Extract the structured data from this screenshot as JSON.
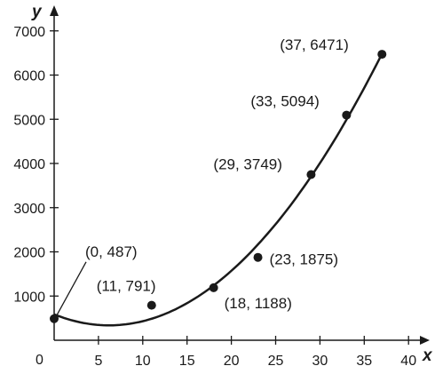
{
  "chart_data": {
    "type": "scatter",
    "title": "",
    "xlabel": "x",
    "ylabel": "y",
    "xlim": [
      0,
      40
    ],
    "ylim": [
      0,
      7000
    ],
    "x_ticks": [
      5,
      10,
      15,
      20,
      25,
      30,
      35,
      40
    ],
    "y_ticks": [
      1000,
      2000,
      3000,
      4000,
      5000,
      6000,
      7000
    ],
    "origin_label": "0",
    "grid": false,
    "points": [
      {
        "x": 0,
        "y": 487,
        "label": "(0, 487)"
      },
      {
        "x": 11,
        "y": 791,
        "label": "(11, 791)"
      },
      {
        "x": 18,
        "y": 1188,
        "label": "(18, 1188)"
      },
      {
        "x": 23,
        "y": 1875,
        "label": "(23, 1875)"
      },
      {
        "x": 29,
        "y": 3749,
        "label": "(29, 3749)"
      },
      {
        "x": 33,
        "y": 5094,
        "label": "(33, 5094)"
      },
      {
        "x": 37,
        "y": 6471,
        "label": "(37, 6471)"
      }
    ],
    "curve": {
      "kind": "quadratic",
      "x_range": [
        0,
        37
      ]
    },
    "colors": {
      "ink": "#1a1a1a",
      "background": "#ffffff"
    }
  }
}
